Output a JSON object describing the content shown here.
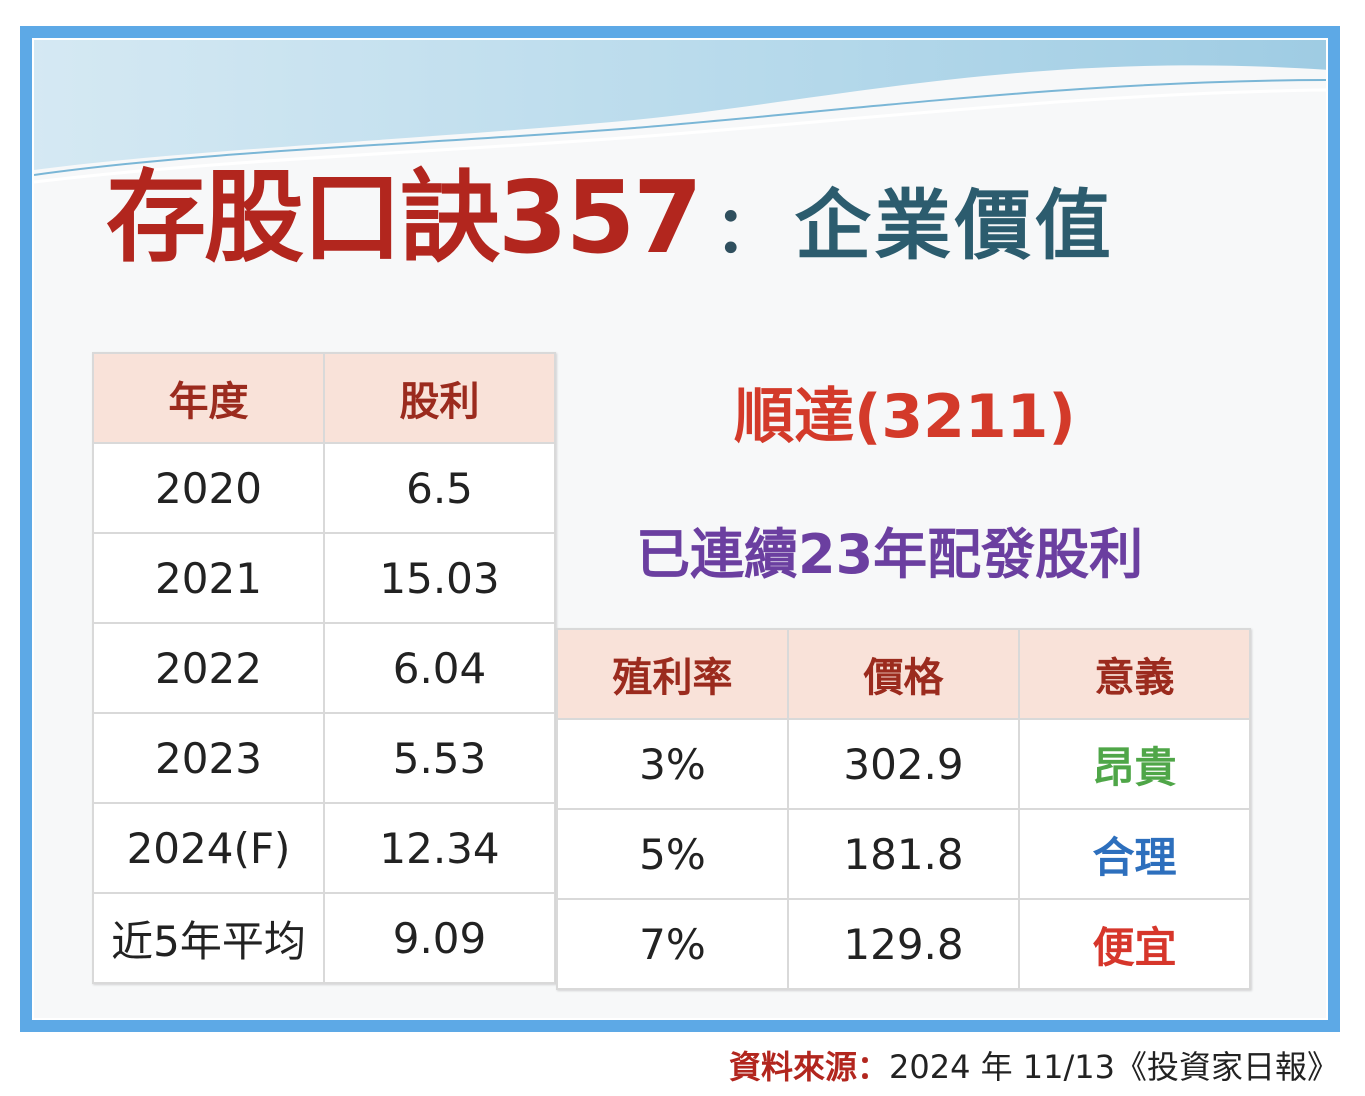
{
  "title": {
    "main": "存股口訣357",
    "colon": "：",
    "sub": "企業價值"
  },
  "company": "順達(3211)",
  "note": "已連續23年配發股利",
  "dividend_table": {
    "headers": [
      "年度",
      "股利"
    ],
    "rows": [
      [
        "2020",
        "6.5"
      ],
      [
        "2021",
        "15.03"
      ],
      [
        "2022",
        "6.04"
      ],
      [
        "2023",
        "5.53"
      ],
      [
        "2024(F)",
        "12.34"
      ],
      [
        "近5年平均",
        "9.09"
      ]
    ]
  },
  "valuation_table": {
    "headers": [
      "殖利率",
      "價格",
      "意義"
    ],
    "rows": [
      [
        "3%",
        "302.9",
        "昂貴"
      ],
      [
        "5%",
        "181.8",
        "合理"
      ],
      [
        "7%",
        "129.8",
        "便宜"
      ]
    ]
  },
  "colors": {
    "expensive": "#4fa648",
    "fair": "#2d6fbd",
    "cheap": "#d6362b",
    "title_red": "#b2261e"
  },
  "source": {
    "label": "資料來源：",
    "text": "2024 年 11/13《投資家日報》"
  }
}
